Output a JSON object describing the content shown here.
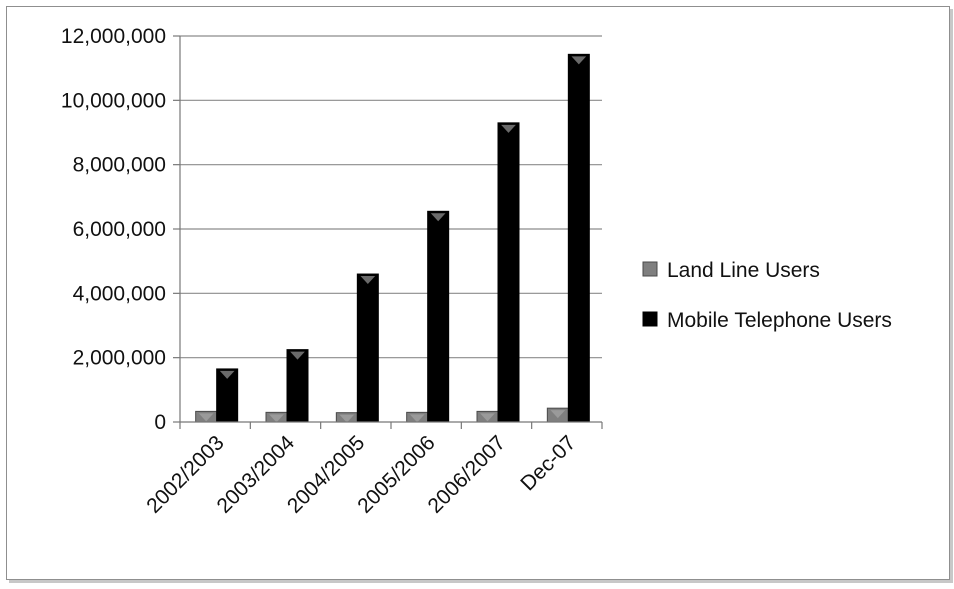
{
  "chart_data": {
    "type": "bar",
    "title": "",
    "xlabel": "",
    "ylabel": "",
    "categories": [
      "2002/2003",
      "2003/2004",
      "2004/2005",
      "2005/2006",
      "2006/2007",
      "Dec-07"
    ],
    "series": [
      {
        "name": "Land Line Users",
        "color": "#7f7f7f",
        "values": [
          330000,
          300000,
          290000,
          300000,
          330000,
          430000
        ]
      },
      {
        "name": "Mobile Telephone Users",
        "color": "#000000",
        "values": [
          1650000,
          2250000,
          4600000,
          6550000,
          9300000,
          11430000
        ]
      }
    ],
    "ylim": [
      0,
      12000000
    ],
    "yticks": [
      0,
      2000000,
      4000000,
      6000000,
      8000000,
      10000000,
      12000000
    ],
    "ytick_labels": [
      "0",
      "2,000,000",
      "4,000,000",
      "6,000,000",
      "8,000,000",
      "10,000,000",
      "12,000,000"
    ],
    "grid": true,
    "legend_position": "right"
  }
}
